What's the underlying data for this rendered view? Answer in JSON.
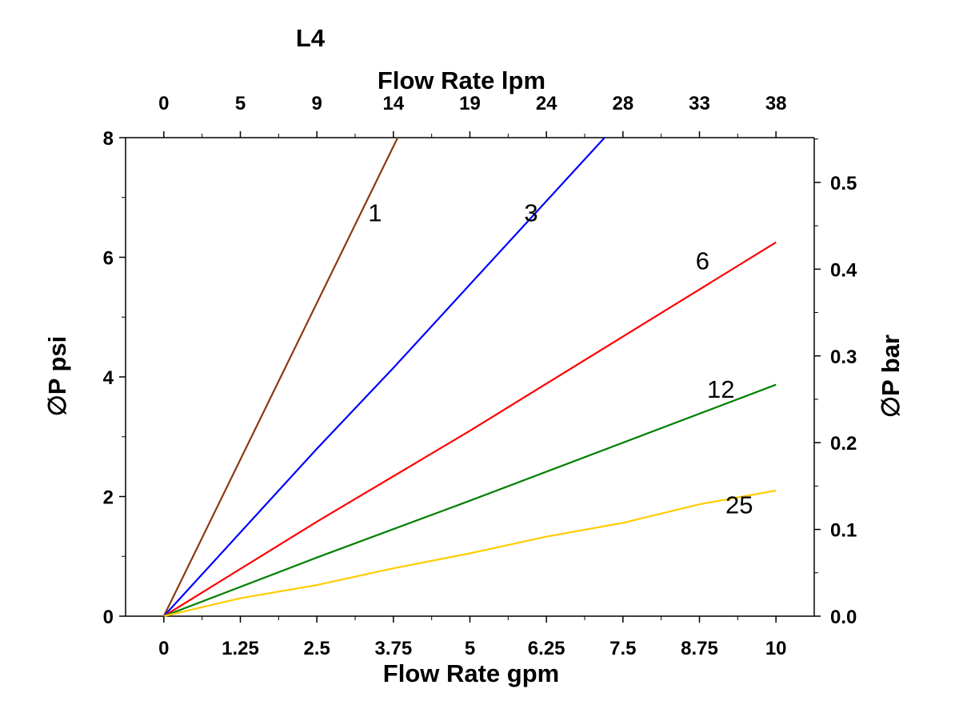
{
  "chart_data": {
    "type": "line",
    "title": "L4",
    "xlabel": "Flow Rate gpm",
    "xlabel_top": "Flow Rate lpm",
    "ylabel": "∅P psi",
    "ylabel_right": "∅P bar",
    "xlim": [
      -0.625,
      10.625
    ],
    "ylim": [
      0,
      8
    ],
    "y2lim": [
      0,
      0.5516
    ],
    "x_ticks": [
      "0",
      "1.25",
      "2.5",
      "3.75",
      "5",
      "6.25",
      "7.5",
      "8.75",
      "10"
    ],
    "x_ticks_top": [
      "0",
      "5",
      "9",
      "14",
      "19",
      "24",
      "28",
      "33",
      "38"
    ],
    "y_ticks": [
      "0",
      "2",
      "4",
      "6",
      "8"
    ],
    "y2_ticks": [
      "0.0",
      "0.1",
      "0.2",
      "0.3",
      "0.4",
      "0.5"
    ],
    "grid": false,
    "series": [
      {
        "name": "1",
        "color": "#8B3A0F",
        "x": [
          0,
          3.82
        ],
        "y": [
          0,
          8
        ]
      },
      {
        "name": "3",
        "color": "#0000FF",
        "x": [
          0,
          2.5,
          3.75,
          7.2
        ],
        "y": [
          0,
          2.8,
          4.15,
          8
        ]
      },
      {
        "name": "6",
        "color": "#FF0000",
        "x": [
          0,
          2.5,
          5,
          10
        ],
        "y": [
          0,
          1.58,
          3.1,
          6.25
        ]
      },
      {
        "name": "12",
        "color": "#008000",
        "x": [
          0,
          2.5,
          5,
          10
        ],
        "y": [
          0,
          0.98,
          1.93,
          3.87
        ]
      },
      {
        "name": "25",
        "color": "#FFCC00",
        "x": [
          0,
          1.25,
          2.5,
          3.75,
          5,
          6.25,
          7.5,
          8.75,
          10
        ],
        "y": [
          0,
          0.3,
          0.52,
          0.8,
          1.05,
          1.33,
          1.56,
          1.87,
          2.1
        ]
      }
    ]
  }
}
